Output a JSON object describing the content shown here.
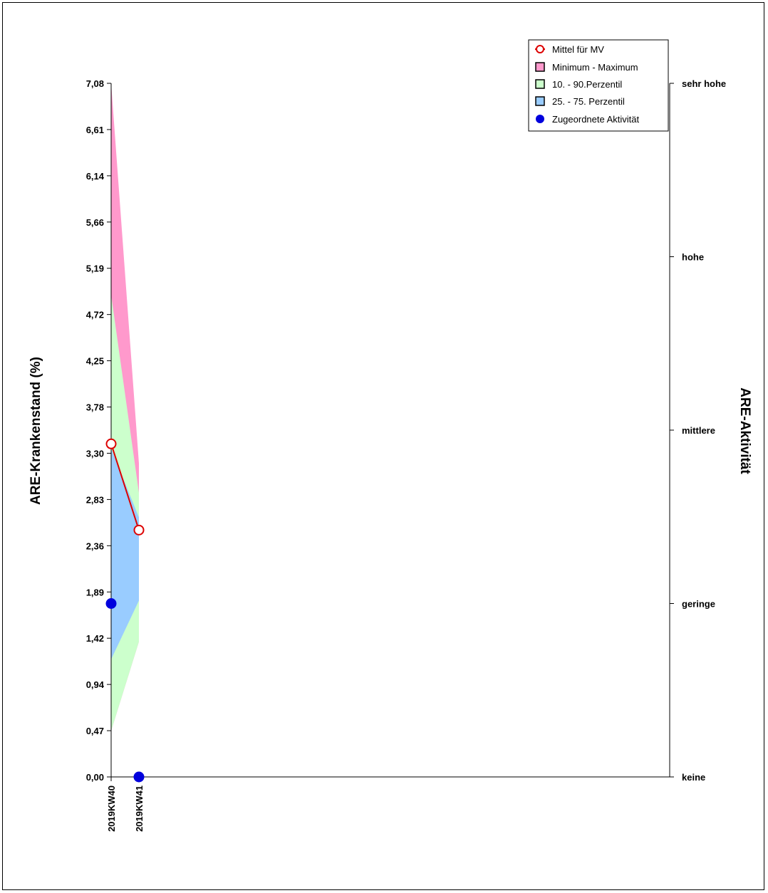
{
  "chart_data": {
    "type": "area",
    "ylabel": "ARE-Krankenstand (%)",
    "y2label": "ARE-Aktivität",
    "categories": [
      "2019KW40",
      "2019KW41"
    ],
    "ylim": [
      0,
      7.08
    ],
    "yticks": [
      "0,00",
      "0,47",
      "0,94",
      "1,42",
      "1,89",
      "2,36",
      "2,83",
      "3,30",
      "3,78",
      "4,25",
      "4,72",
      "5,19",
      "5,66",
      "6,14",
      "6,61",
      "7,08"
    ],
    "y2ticks": [
      "keine",
      "geringe",
      "mittlere",
      "hohe",
      "sehr hohe"
    ],
    "bands": [
      {
        "name": "Minimum - Maximum",
        "color": "#ff99cc",
        "lower": [
          0.47,
          1.38
        ],
        "upper": [
          7.08,
          3.2
        ]
      },
      {
        "name": "10. - 90.Perzentil",
        "color": "#ccffcc",
        "lower": [
          0.47,
          1.38
        ],
        "upper": [
          4.92,
          2.9
        ]
      },
      {
        "name": "25. - 75. Perzentil",
        "color": "#99ccff",
        "lower": [
          1.2,
          1.8
        ],
        "upper": [
          3.35,
          2.65
        ]
      }
    ],
    "series": [
      {
        "name": "Mittel für MV",
        "values": [
          3.4,
          2.52
        ],
        "color": "#dd0000"
      }
    ],
    "activity": {
      "name": "Zugeordnete Aktivität",
      "values": [
        1.77,
        0.0
      ],
      "color": "#0000dd"
    },
    "legend_position": "top-right",
    "grid": false
  }
}
